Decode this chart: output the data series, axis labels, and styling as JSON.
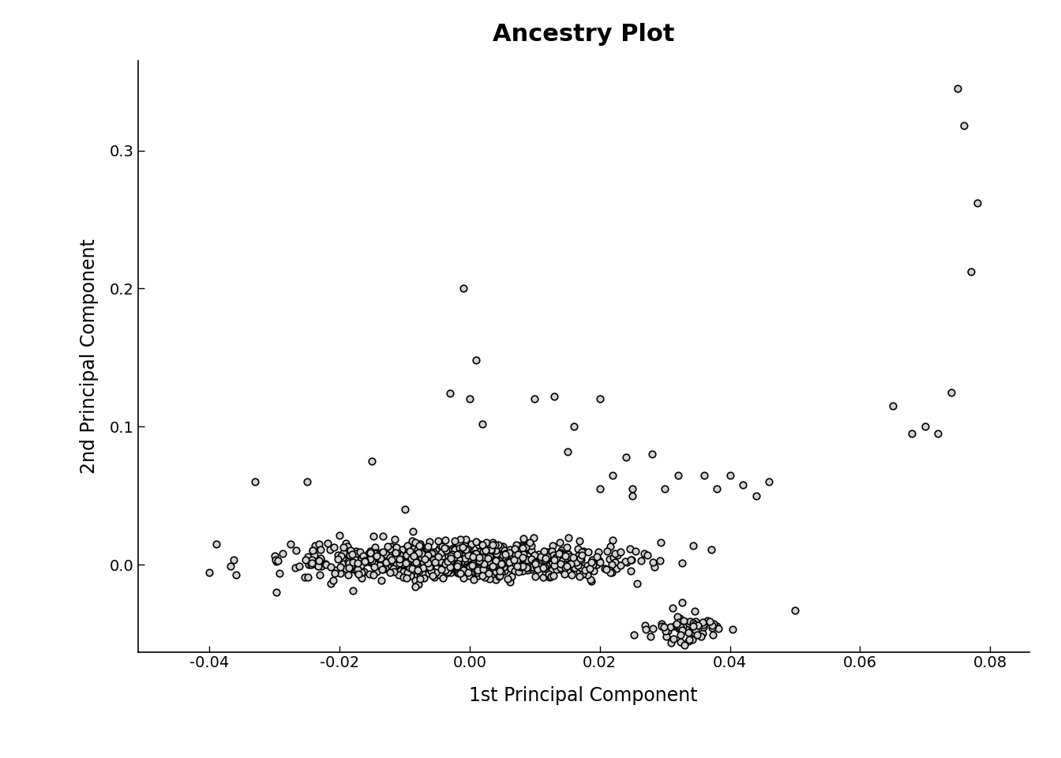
{
  "title": "Ancestry Plot",
  "xlabel": "1st Principal Component",
  "ylabel": "2nd Principal Component",
  "xlim": [
    -0.051,
    0.086
  ],
  "ylim": [
    -0.063,
    0.365
  ],
  "xticks": [
    -0.04,
    -0.02,
    0.0,
    0.02,
    0.04,
    0.06,
    0.08
  ],
  "yticks": [
    0.0,
    0.1,
    0.2,
    0.3
  ],
  "marker_size": 38,
  "marker_facecolor": "#d3d3d3",
  "marker_edgecolor": "#000000",
  "marker_linewidth": 1.2,
  "background_color": "#ffffff",
  "title_fontsize": 22,
  "axis_label_fontsize": 17,
  "tick_fontsize": 14
}
